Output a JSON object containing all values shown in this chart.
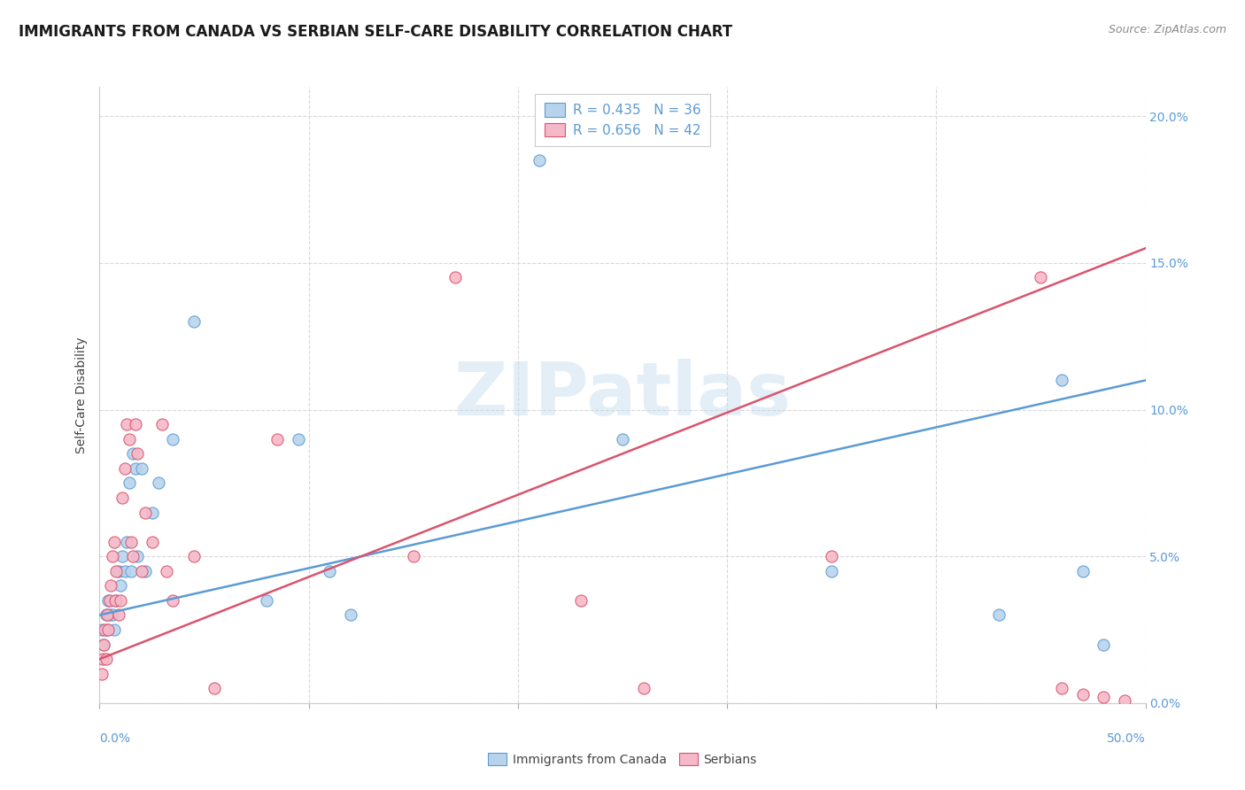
{
  "title": "IMMIGRANTS FROM CANADA VS SERBIAN SELF-CARE DISABILITY CORRELATION CHART",
  "source": "Source: ZipAtlas.com",
  "ylabel": "Self-Care Disability",
  "ytick_vals": [
    0.0,
    5.0,
    10.0,
    15.0,
    20.0
  ],
  "xlim": [
    0.0,
    50.0
  ],
  "ylim": [
    0.0,
    21.0
  ],
  "legend1_R": "0.435",
  "legend1_N": "36",
  "legend2_R": "0.656",
  "legend2_N": "42",
  "canada_color": "#b8d4ed",
  "serbian_color": "#f5b8c8",
  "canada_line_color": "#5b9bd5",
  "serbian_line_color": "#d9546e",
  "canada_label": "Immigrants from Canada",
  "serbian_label": "Serbians",
  "canada_x": [
    0.1,
    0.2,
    0.3,
    0.35,
    0.4,
    0.5,
    0.6,
    0.7,
    0.8,
    0.9,
    1.0,
    1.1,
    1.2,
    1.3,
    1.4,
    1.5,
    1.6,
    1.7,
    1.8,
    2.0,
    2.2,
    2.5,
    2.8,
    3.5,
    4.5,
    8.0,
    9.5,
    11.0,
    12.0,
    21.0,
    25.0,
    35.0,
    43.0,
    46.0,
    47.0,
    48.0
  ],
  "canada_y": [
    2.5,
    2.0,
    3.0,
    2.5,
    3.5,
    3.0,
    3.0,
    2.5,
    3.5,
    4.5,
    4.0,
    5.0,
    4.5,
    5.5,
    7.5,
    4.5,
    8.5,
    8.0,
    5.0,
    8.0,
    4.5,
    6.5,
    7.5,
    9.0,
    13.0,
    3.5,
    9.0,
    4.5,
    3.0,
    18.5,
    9.0,
    4.5,
    3.0,
    11.0,
    4.5,
    2.0
  ],
  "serbian_x": [
    0.1,
    0.15,
    0.2,
    0.25,
    0.3,
    0.35,
    0.4,
    0.5,
    0.55,
    0.6,
    0.7,
    0.75,
    0.8,
    0.9,
    1.0,
    1.1,
    1.2,
    1.3,
    1.4,
    1.5,
    1.6,
    1.7,
    1.8,
    2.0,
    2.2,
    2.5,
    3.0,
    3.2,
    3.5,
    4.5,
    5.5,
    8.5,
    15.0,
    17.0,
    23.0,
    26.0,
    35.0,
    45.0,
    46.0,
    47.0,
    48.0,
    49.0
  ],
  "serbian_y": [
    1.0,
    1.5,
    2.0,
    2.5,
    1.5,
    3.0,
    2.5,
    3.5,
    4.0,
    5.0,
    5.5,
    3.5,
    4.5,
    3.0,
    3.5,
    7.0,
    8.0,
    9.5,
    9.0,
    5.5,
    5.0,
    9.5,
    8.5,
    4.5,
    6.5,
    5.5,
    9.5,
    4.5,
    3.5,
    5.0,
    0.5,
    9.0,
    5.0,
    14.5,
    3.5,
    0.5,
    5.0,
    14.5,
    0.5,
    0.3,
    0.2,
    0.1
  ],
  "canada_trendline_x": [
    0.0,
    50.0
  ],
  "canada_trendline_y": [
    3.0,
    11.0
  ],
  "serbian_trendline_x": [
    0.0,
    50.0
  ],
  "serbian_trendline_y": [
    1.5,
    15.5
  ],
  "background_color": "#ffffff",
  "grid_color": "#d8d8d8",
  "tick_color": "#5b9bd5",
  "title_color": "#1a1a1a",
  "source_color": "#888888",
  "ylabel_color": "#444444",
  "title_fontsize": 12,
  "tick_fontsize": 10,
  "ylabel_fontsize": 10,
  "watermark_text": "ZIPatlas",
  "watermark_color": "#c8dff0",
  "watermark_fontsize": 60
}
